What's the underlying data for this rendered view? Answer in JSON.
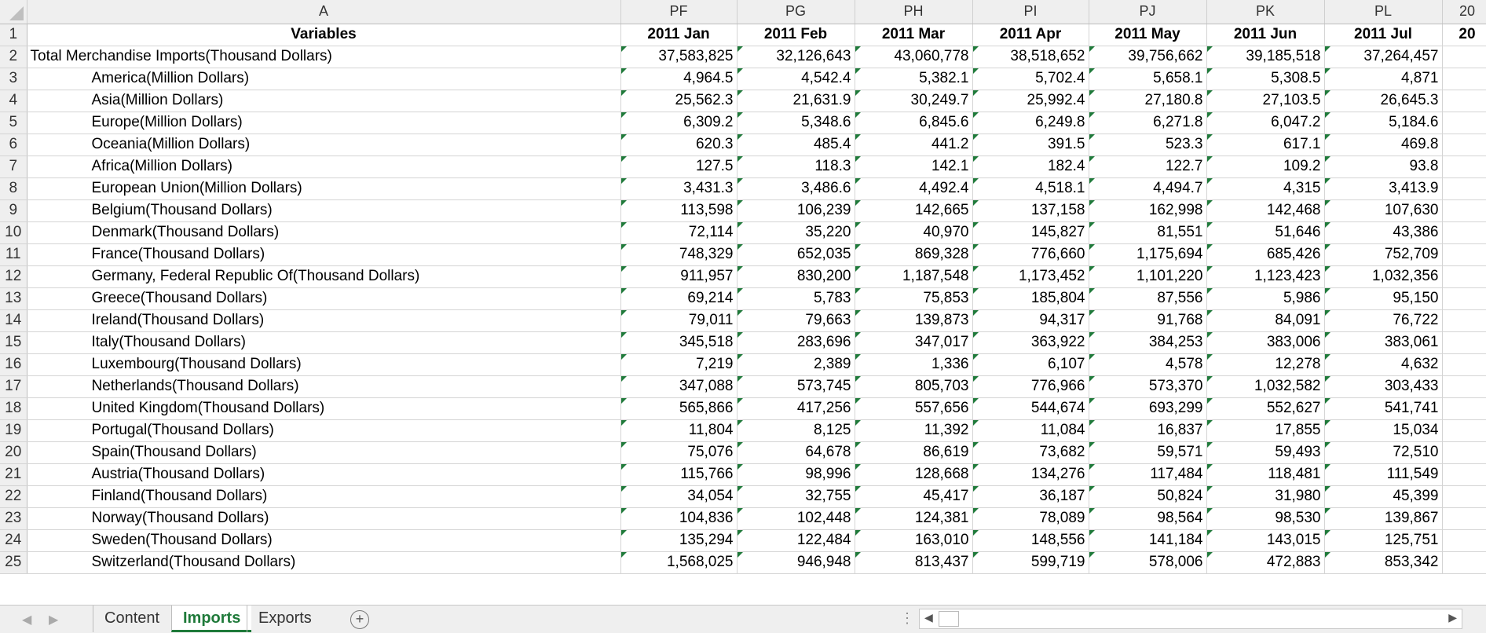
{
  "columns": [
    "A",
    "PF",
    "PG",
    "PH",
    "PI",
    "PJ",
    "PK",
    "PL",
    "20"
  ],
  "header_row": {
    "row": "1",
    "variable": "Variables",
    "months": [
      "2011 Jan",
      "2011 Feb",
      "2011 Mar",
      "2011 Apr",
      "2011 May",
      "2011 Jun",
      "2011 Jul",
      "20"
    ]
  },
  "rows": [
    {
      "row": "2",
      "variable": "Total Merchandise Imports(Thousand Dollars)",
      "indent": false,
      "values": [
        "37,583,825",
        "32,126,643",
        "43,060,778",
        "38,518,652",
        "39,756,662",
        "39,185,518",
        "37,264,457"
      ]
    },
    {
      "row": "3",
      "variable": "America(Million Dollars)",
      "indent": true,
      "values": [
        "4,964.5",
        "4,542.4",
        "5,382.1",
        "5,702.4",
        "5,658.1",
        "5,308.5",
        "4,871"
      ]
    },
    {
      "row": "4",
      "variable": "Asia(Million Dollars)",
      "indent": true,
      "values": [
        "25,562.3",
        "21,631.9",
        "30,249.7",
        "25,992.4",
        "27,180.8",
        "27,103.5",
        "26,645.3"
      ]
    },
    {
      "row": "5",
      "variable": "Europe(Million Dollars)",
      "indent": true,
      "values": [
        "6,309.2",
        "5,348.6",
        "6,845.6",
        "6,249.8",
        "6,271.8",
        "6,047.2",
        "5,184.6"
      ]
    },
    {
      "row": "6",
      "variable": "Oceania(Million Dollars)",
      "indent": true,
      "values": [
        "620.3",
        "485.4",
        "441.2",
        "391.5",
        "523.3",
        "617.1",
        "469.8"
      ]
    },
    {
      "row": "7",
      "variable": "Africa(Million Dollars)",
      "indent": true,
      "values": [
        "127.5",
        "118.3",
        "142.1",
        "182.4",
        "122.7",
        "109.2",
        "93.8"
      ]
    },
    {
      "row": "8",
      "variable": "European Union(Million Dollars)",
      "indent": true,
      "values": [
        "3,431.3",
        "3,486.6",
        "4,492.4",
        "4,518.1",
        "4,494.7",
        "4,315",
        "3,413.9"
      ]
    },
    {
      "row": "9",
      "variable": "Belgium(Thousand Dollars)",
      "indent": true,
      "values": [
        "113,598",
        "106,239",
        "142,665",
        "137,158",
        "162,998",
        "142,468",
        "107,630"
      ]
    },
    {
      "row": "10",
      "variable": "Denmark(Thousand Dollars)",
      "indent": true,
      "values": [
        "72,114",
        "35,220",
        "40,970",
        "145,827",
        "81,551",
        "51,646",
        "43,386"
      ]
    },
    {
      "row": "11",
      "variable": "France(Thousand Dollars)",
      "indent": true,
      "values": [
        "748,329",
        "652,035",
        "869,328",
        "776,660",
        "1,175,694",
        "685,426",
        "752,709"
      ]
    },
    {
      "row": "12",
      "variable": "Germany, Federal Republic Of(Thousand Dollars)",
      "indent": true,
      "values": [
        "911,957",
        "830,200",
        "1,187,548",
        "1,173,452",
        "1,101,220",
        "1,123,423",
        "1,032,356"
      ]
    },
    {
      "row": "13",
      "variable": "Greece(Thousand Dollars)",
      "indent": true,
      "values": [
        "69,214",
        "5,783",
        "75,853",
        "185,804",
        "87,556",
        "5,986",
        "95,150"
      ]
    },
    {
      "row": "14",
      "variable": "Ireland(Thousand Dollars)",
      "indent": true,
      "values": [
        "79,011",
        "79,663",
        "139,873",
        "94,317",
        "91,768",
        "84,091",
        "76,722"
      ]
    },
    {
      "row": "15",
      "variable": "Italy(Thousand Dollars)",
      "indent": true,
      "values": [
        "345,518",
        "283,696",
        "347,017",
        "363,922",
        "384,253",
        "383,006",
        "383,061"
      ]
    },
    {
      "row": "16",
      "variable": "Luxembourg(Thousand Dollars)",
      "indent": true,
      "values": [
        "7,219",
        "2,389",
        "1,336",
        "6,107",
        "4,578",
        "12,278",
        "4,632"
      ]
    },
    {
      "row": "17",
      "variable": "Netherlands(Thousand Dollars)",
      "indent": true,
      "values": [
        "347,088",
        "573,745",
        "805,703",
        "776,966",
        "573,370",
        "1,032,582",
        "303,433"
      ]
    },
    {
      "row": "18",
      "variable": "United Kingdom(Thousand Dollars)",
      "indent": true,
      "values": [
        "565,866",
        "417,256",
        "557,656",
        "544,674",
        "693,299",
        "552,627",
        "541,741"
      ]
    },
    {
      "row": "19",
      "variable": "Portugal(Thousand Dollars)",
      "indent": true,
      "values": [
        "11,804",
        "8,125",
        "11,392",
        "11,084",
        "16,837",
        "17,855",
        "15,034"
      ]
    },
    {
      "row": "20",
      "variable": "Spain(Thousand Dollars)",
      "indent": true,
      "values": [
        "75,076",
        "64,678",
        "86,619",
        "73,682",
        "59,571",
        "59,493",
        "72,510"
      ]
    },
    {
      "row": "21",
      "variable": "Austria(Thousand Dollars)",
      "indent": true,
      "values": [
        "115,766",
        "98,996",
        "128,668",
        "134,276",
        "117,484",
        "118,481",
        "111,549"
      ]
    },
    {
      "row": "22",
      "variable": "Finland(Thousand Dollars)",
      "indent": true,
      "values": [
        "34,054",
        "32,755",
        "45,417",
        "36,187",
        "50,824",
        "31,980",
        "45,399"
      ]
    },
    {
      "row": "23",
      "variable": "Norway(Thousand Dollars)",
      "indent": true,
      "values": [
        "104,836",
        "102,448",
        "124,381",
        "78,089",
        "98,564",
        "98,530",
        "139,867"
      ]
    },
    {
      "row": "24",
      "variable": "Sweden(Thousand Dollars)",
      "indent": true,
      "values": [
        "135,294",
        "122,484",
        "163,010",
        "148,556",
        "141,184",
        "143,015",
        "125,751"
      ]
    },
    {
      "row": "25",
      "variable": "Switzerland(Thousand Dollars)",
      "indent": true,
      "values": [
        "1,568,025",
        "946,948",
        "813,437",
        "599,719",
        "578,006",
        "472,883",
        "853,342"
      ]
    }
  ],
  "tabs": [
    {
      "label": "Content",
      "active": false
    },
    {
      "label": "Imports",
      "active": true
    },
    {
      "label": "Exports",
      "active": false
    }
  ],
  "add_sheet_icon": "plus-circle-icon",
  "accent_color": "#1f7a3a"
}
